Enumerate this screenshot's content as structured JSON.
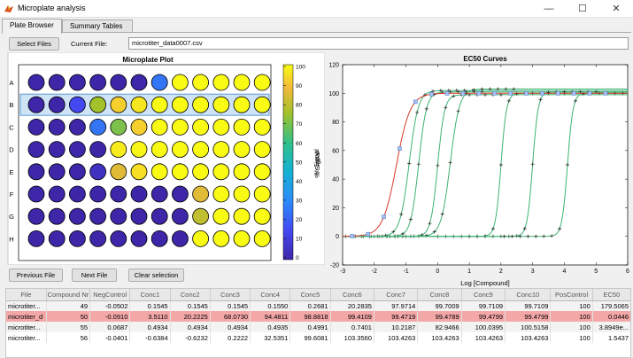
{
  "window": {
    "title": "Microplate analysis",
    "minimize": "—",
    "maximize": "☐",
    "close": "✕"
  },
  "tabs": [
    {
      "label": "Plate Browser"
    },
    {
      "label": "Summary Tables"
    }
  ],
  "toolbar": {
    "select_files": "Select Files",
    "current_file_label": "Current File:",
    "current_file": "microtiter_data0007.csv"
  },
  "plate": {
    "title": "Microplate Plot",
    "rows": [
      "A",
      "B",
      "C",
      "D",
      "E",
      "F",
      "G",
      "H"
    ],
    "selected_row": 1,
    "colorbar_ticks": [
      "100",
      "90",
      "80",
      "70",
      "60",
      "50",
      "40",
      "30",
      "20",
      "10",
      "0"
    ],
    "colorbar_label": "% Signal",
    "values": [
      [
        0,
        0,
        0,
        0,
        0,
        0,
        25,
        100,
        100,
        100,
        100,
        100
      ],
      [
        0,
        0,
        15,
        75,
        92,
        96,
        100,
        100,
        100,
        100,
        100,
        100
      ],
      [
        0,
        0,
        0,
        25,
        70,
        92,
        100,
        100,
        100,
        100,
        100,
        100
      ],
      [
        0,
        0,
        0,
        0,
        97,
        99,
        100,
        100,
        100,
        100,
        100,
        100
      ],
      [
        0,
        0,
        0,
        5,
        85,
        95,
        100,
        100,
        100,
        100,
        100,
        100
      ],
      [
        0,
        0,
        0,
        0,
        0,
        0,
        0,
        0,
        85,
        100,
        100,
        100
      ],
      [
        0,
        0,
        0,
        0,
        0,
        0,
        0,
        0,
        80,
        100,
        100,
        100
      ],
      [
        0,
        0,
        0,
        0,
        0,
        0,
        0,
        0,
        100,
        100,
        100,
        100
      ]
    ]
  },
  "buttons": {
    "previous_file": "Previous File",
    "next_file": "Next File",
    "clear_selection": "Clear selection"
  },
  "chart_data": {
    "type": "line",
    "title": "EC50 Curves",
    "xlabel": "Log [Compound]",
    "ylabel": "% Signal",
    "xlim": [
      -3,
      6
    ],
    "ylim": [
      -20,
      120
    ],
    "xticks": [
      -3,
      -2,
      -1,
      0,
      1,
      2,
      3,
      4,
      5,
      6
    ],
    "yticks": [
      -20,
      0,
      20,
      40,
      60,
      80,
      100,
      120
    ],
    "series": [
      {
        "ec50": -1.3,
        "hill": 2.0,
        "top": 100,
        "color": "#d43a2a",
        "markers": "square"
      },
      {
        "ec50": -0.9,
        "hill": 3.0,
        "top": 102,
        "color": "#3cb371",
        "markers": "plus"
      },
      {
        "ec50": -0.6,
        "hill": 3.5,
        "top": 101,
        "color": "#3cb371",
        "markers": "plus"
      },
      {
        "ec50": 0.0,
        "hill": 4.0,
        "top": 99,
        "color": "#3cb371",
        "markers": "plus"
      },
      {
        "ec50": 0.4,
        "hill": 3.0,
        "top": 103,
        "color": "#3cb371",
        "markers": "plus"
      },
      {
        "ec50": 2.0,
        "hill": 5.0,
        "top": 100,
        "color": "#3cb371",
        "markers": "plus"
      },
      {
        "ec50": 3.0,
        "hill": 5.0,
        "top": 101,
        "color": "#3cb371",
        "markers": "plus"
      },
      {
        "ec50": 4.1,
        "hill": 5.0,
        "top": 100,
        "color": "#3cb371",
        "markers": "plus"
      }
    ]
  },
  "table": {
    "columns": [
      "File",
      "Compound Nr",
      "NegControl",
      "Conc1",
      "Conc2",
      "Conc3",
      "Conc4",
      "Conc5",
      "Conc6",
      "Conc7",
      "Conc8",
      "Conc9",
      "Conc10",
      "PosControl",
      "EC50"
    ],
    "rows": [
      [
        "microtiter...",
        "49",
        "-0.0502",
        "0.1545",
        "0.1545",
        "0.1545",
        "0.1550",
        "0.2681",
        "20.2835",
        "97.9714",
        "99.7009",
        "99.7109",
        "99.7109",
        "100",
        "179.5065"
      ],
      [
        "microtiter_d",
        "50",
        "-0.0910",
        "3.5110",
        "20.2225",
        "68.0730",
        "94.4811",
        "98.8818",
        "99.4109",
        "99.4719",
        "99.4789",
        "99.4799",
        "99.4799",
        "100",
        "0.0446"
      ],
      [
        "microtiter...",
        "55",
        "0.0687",
        "0.4934",
        "0.4934",
        "0.4934",
        "0.4935",
        "0.4991",
        "0.7401",
        "10.2187",
        "82.9466",
        "100.0395",
        "100.5158",
        "100",
        "3.8949e..."
      ],
      [
        "microtiter...",
        "56",
        "-0.0401",
        "-0.6384",
        "-0.6232",
        "0.2222",
        "32.5351",
        "99.6081",
        "103.3560",
        "103.4263",
        "103.4263",
        "103.4263",
        "103.4263",
        "100",
        "1.5437"
      ]
    ],
    "selected_row": 1
  }
}
